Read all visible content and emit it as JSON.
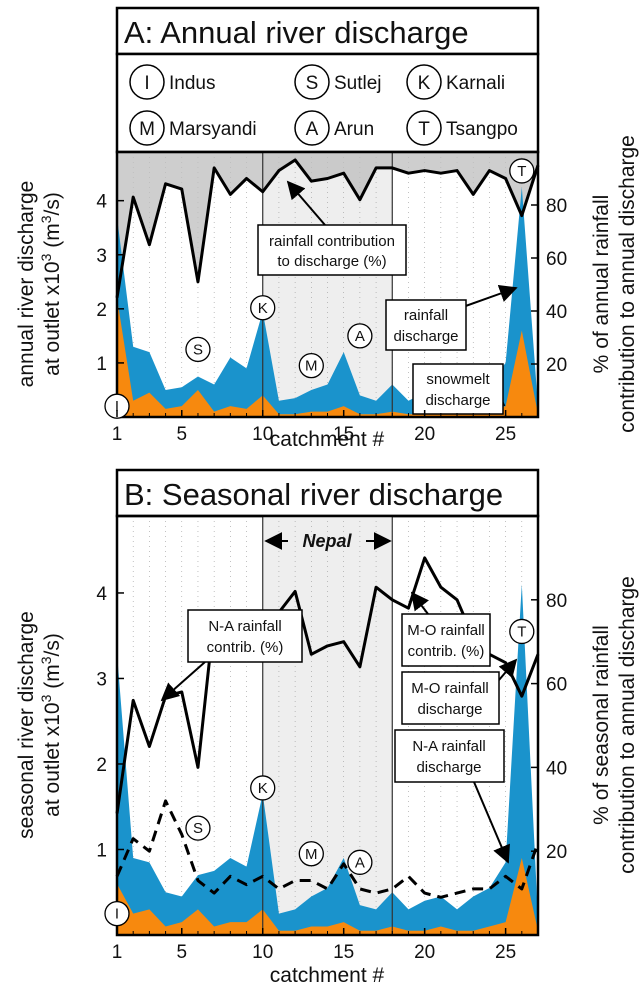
{
  "colors": {
    "rain": "#1a93cc",
    "snow": "#f7890e",
    "contrib_fill": "#bdbdbd",
    "nepal_band": "#eeeeee",
    "line": "#000000"
  },
  "rivers": [
    {
      "code": "I",
      "name": "Indus"
    },
    {
      "code": "S",
      "name": "Sutlej"
    },
    {
      "code": "K",
      "name": "Karnali"
    },
    {
      "code": "M",
      "name": "Marsyandi"
    },
    {
      "code": "A",
      "name": "Arun"
    },
    {
      "code": "T",
      "name": "Tsangpo"
    }
  ],
  "chart_data": [
    {
      "type": "area",
      "title": "A: Annual river discharge",
      "xlabel": "catchment #",
      "ylabel_lines": [
        "annual river discharge",
        "at outlet x10",
        "3",
        " (m",
        "3",
        "/s)"
      ],
      "y2label_lines": [
        "% of annual rainfall",
        "contribution to annual discharge"
      ],
      "xlim": [
        1,
        27
      ],
      "ylim": [
        0,
        4.9
      ],
      "y2lim": [
        0,
        100
      ],
      "xticks": [
        1,
        5,
        10,
        15,
        20,
        25
      ],
      "yticks": [
        1,
        2,
        3,
        4
      ],
      "y2ticks": [
        20,
        40,
        60,
        80
      ],
      "vlines": [
        10,
        18
      ],
      "x": [
        1,
        2,
        3,
        4,
        5,
        6,
        7,
        8,
        9,
        10,
        11,
        12,
        13,
        14,
        15,
        16,
        17,
        18,
        19,
        20,
        21,
        22,
        23,
        24,
        25,
        26,
        27
      ],
      "series": [
        {
          "name": "rainfall discharge",
          "values": [
            3.7,
            1.3,
            1.2,
            0.5,
            0.55,
            0.75,
            0.6,
            1.1,
            0.9,
            1.95,
            0.3,
            0.35,
            0.5,
            0.6,
            1.2,
            0.4,
            0.3,
            0.6,
            0.3,
            0.45,
            0.55,
            0.35,
            0.5,
            0.6,
            1.0,
            4.25,
            0.2
          ]
        },
        {
          "name": "snowmelt discharge",
          "values": [
            2.2,
            0.3,
            0.45,
            0.15,
            0.2,
            0.5,
            0.1,
            0.2,
            0.15,
            0.4,
            0.05,
            0.05,
            0.1,
            0.1,
            0.2,
            0.05,
            0.05,
            0.1,
            0.05,
            0.05,
            0.1,
            0.05,
            0.05,
            0.1,
            0.2,
            1.6,
            0.05
          ]
        },
        {
          "name": "rainfall contribution to discharge (%)",
          "axis": "right",
          "values": [
            45,
            83,
            65,
            88,
            86,
            51,
            94,
            84,
            90,
            85,
            93,
            97,
            89,
            90,
            92,
            82,
            94,
            94,
            92,
            93,
            92,
            93,
            84,
            93,
            90,
            76,
            95
          ]
        }
      ],
      "annotations": [
        "rainfall contribution to discharge (%)",
        "rainfall discharge",
        "snowmelt discharge"
      ],
      "markers": [
        {
          "code": "I",
          "x": 1,
          "y": 0.2
        },
        {
          "code": "S",
          "x": 6,
          "y": 1.25
        },
        {
          "code": "K",
          "x": 10,
          "y": 2.02
        },
        {
          "code": "M",
          "x": 13,
          "y": 0.95
        },
        {
          "code": "A",
          "x": 16,
          "y": 1.5
        },
        {
          "code": "T",
          "x": 26,
          "y": 4.55
        }
      ]
    },
    {
      "type": "area",
      "title": "B: Seasonal river discharge",
      "xlabel": "catchment #",
      "ylabel_lines": [
        "seasonal river discharge",
        "at outlet x10",
        "3",
        " (m",
        "3",
        "/s)"
      ],
      "y2label_lines": [
        "% of seasonal rainfall",
        "contribution to annual discharge"
      ],
      "xlim": [
        1,
        27
      ],
      "ylim": [
        0,
        4.9
      ],
      "y2lim": [
        0,
        100
      ],
      "xticks": [
        1,
        5,
        10,
        15,
        20,
        25
      ],
      "yticks": [
        1,
        2,
        3,
        4
      ],
      "y2ticks": [
        20,
        40,
        60,
        80
      ],
      "vlines": [
        10,
        18
      ],
      "band_label": "Nepal",
      "x": [
        1,
        2,
        3,
        4,
        5,
        6,
        7,
        8,
        9,
        10,
        11,
        12,
        13,
        14,
        15,
        16,
        17,
        18,
        19,
        20,
        21,
        22,
        23,
        24,
        25,
        26,
        27
      ],
      "series": [
        {
          "name": "M-O rainfall discharge",
          "values": [
            3.3,
            0.9,
            0.85,
            0.5,
            0.45,
            0.7,
            0.75,
            0.9,
            0.8,
            1.65,
            0.25,
            0.3,
            0.45,
            0.55,
            0.9,
            0.35,
            0.3,
            0.5,
            0.3,
            0.4,
            0.45,
            0.3,
            0.45,
            0.55,
            0.85,
            4.1,
            0.2
          ]
        },
        {
          "name": "N-A rainfall discharge",
          "values": [
            0.6,
            0.25,
            0.3,
            0.1,
            0.15,
            0.3,
            0.1,
            0.15,
            0.15,
            0.3,
            0.05,
            0.05,
            0.1,
            0.1,
            0.15,
            0.05,
            0.05,
            0.1,
            0.05,
            0.05,
            0.1,
            0.05,
            0.05,
            0.1,
            0.15,
            0.9,
            0.05
          ]
        },
        {
          "name": "M-O rainfall contrib. (%)",
          "axis": "right",
          "values": [
            29,
            56,
            45,
            57,
            58,
            40,
            76,
            68,
            70,
            71,
            77,
            82,
            67,
            69,
            70,
            64,
            83,
            80,
            78,
            90,
            83,
            80,
            71,
            67,
            65,
            57,
            67
          ]
        },
        {
          "name": "N-A rainfall contrib. (%)",
          "axis": "right",
          "dashed": true,
          "values": [
            14,
            23,
            20,
            32,
            24,
            13,
            10,
            14,
            12,
            14,
            11,
            13,
            13,
            11,
            17,
            11,
            10,
            11,
            14,
            10,
            9,
            10,
            11,
            11,
            14,
            11,
            22
          ]
        }
      ],
      "annotations": [
        "N-A rainfall contrib. (%)",
        "M-O rainfall contrib. (%)",
        "M-O rainfall discharge",
        "N-A rainfall discharge"
      ],
      "markers": [
        {
          "code": "I",
          "x": 1,
          "y": 0.25
        },
        {
          "code": "S",
          "x": 6,
          "y": 1.25
        },
        {
          "code": "K",
          "x": 10,
          "y": 1.72
        },
        {
          "code": "M",
          "x": 13,
          "y": 0.95
        },
        {
          "code": "A",
          "x": 16,
          "y": 0.85
        },
        {
          "code": "T",
          "x": 26,
          "y": 3.55
        }
      ]
    }
  ]
}
